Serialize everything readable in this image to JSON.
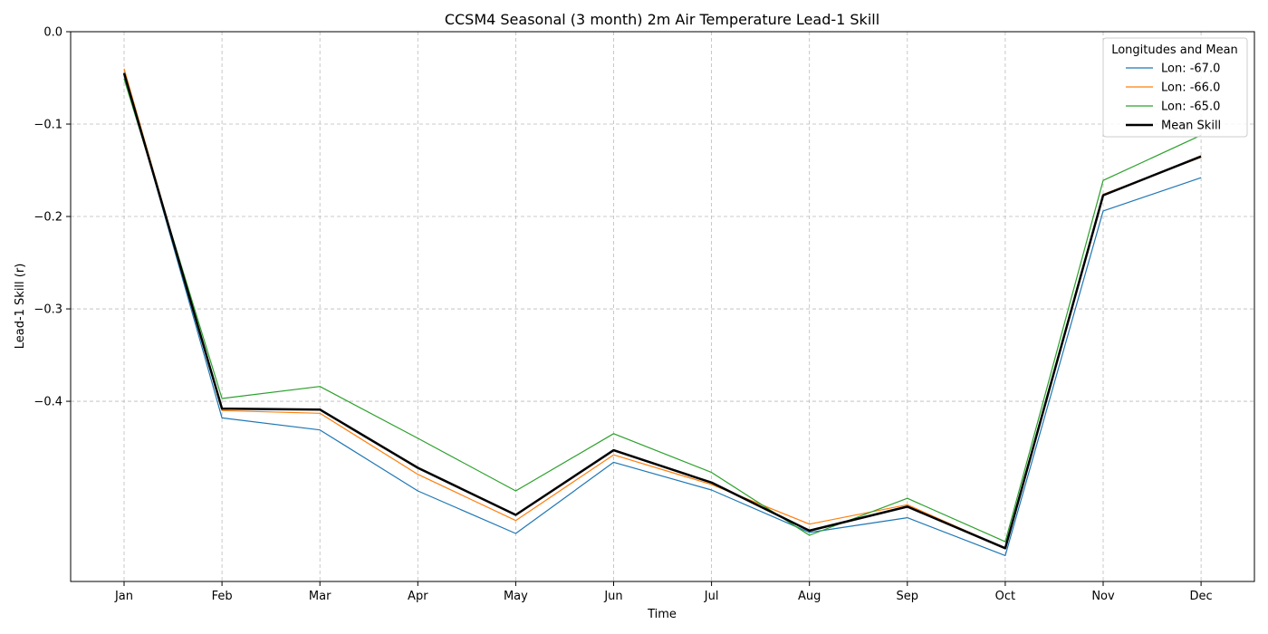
{
  "chart_data": {
    "type": "line",
    "title": "CCSM4 Seasonal (3 month) 2m Air Temperature Lead-1 Skill",
    "xlabel": "Time",
    "ylabel": "Lead-1 Skill (r)",
    "categories": [
      "Jan",
      "Feb",
      "Mar",
      "Apr",
      "May",
      "Jun",
      "Jul",
      "Aug",
      "Sep",
      "Oct",
      "Nov",
      "Dec"
    ],
    "ylim": [
      -0.595,
      0.0
    ],
    "yticks": [
      0.0,
      -0.1,
      -0.2,
      -0.3,
      -0.4
    ],
    "ytick_labels": [
      "0.0",
      "−0.1",
      "−0.2",
      "−0.3",
      "−0.4"
    ],
    "grid": true,
    "legend": {
      "title": "Longitudes and Mean",
      "placement": "top-right"
    },
    "series": [
      {
        "name": "Lon: -67.0",
        "color": "#1f77b4",
        "width": "thin",
        "values": [
          -0.044,
          -0.418,
          -0.431,
          -0.497,
          -0.543,
          -0.466,
          -0.496,
          -0.542,
          -0.526,
          -0.567,
          -0.194,
          -0.158
        ]
      },
      {
        "name": "Lon: -66.0",
        "color": "#ff7f0e",
        "width": "thin",
        "values": [
          -0.04,
          -0.41,
          -0.413,
          -0.479,
          -0.529,
          -0.458,
          -0.49,
          -0.533,
          -0.512,
          -0.559,
          -0.176,
          -0.136
        ]
      },
      {
        "name": "Lon: -65.0",
        "color": "#2ca02c",
        "width": "thin",
        "values": [
          -0.051,
          -0.397,
          -0.384,
          -0.44,
          -0.497,
          -0.435,
          -0.477,
          -0.545,
          -0.505,
          -0.552,
          -0.161,
          -0.112
        ]
      },
      {
        "name": "Mean Skill",
        "color": "#000000",
        "width": "thick",
        "values": [
          -0.045,
          -0.408,
          -0.409,
          -0.472,
          -0.523,
          -0.453,
          -0.488,
          -0.54,
          -0.514,
          -0.559,
          -0.177,
          -0.135
        ]
      }
    ]
  }
}
